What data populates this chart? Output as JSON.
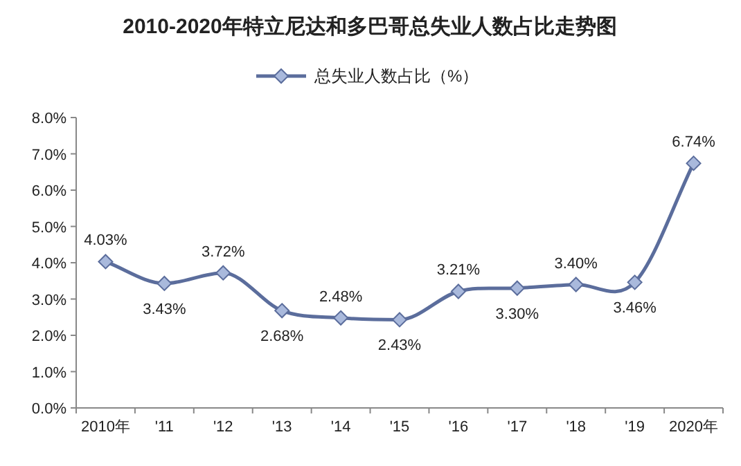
{
  "chart_data": {
    "type": "line",
    "title": "2010-2020年特立尼达和多巴哥总失业人数占比走势图",
    "categories": [
      "2010年",
      "'11",
      "'12",
      "'13",
      "'14",
      "'15",
      "'16",
      "'17",
      "'18",
      "'19",
      "2020年"
    ],
    "series": [
      {
        "name": "总失业人数占比（%）",
        "color": "#5b6d9c",
        "values": [
          4.03,
          3.43,
          3.72,
          2.68,
          2.48,
          2.43,
          3.21,
          3.3,
          3.4,
          3.46,
          6.74
        ],
        "value_labels": [
          "4.03%",
          "3.43%",
          "3.72%",
          "2.68%",
          "2.48%",
          "2.43%",
          "3.21%",
          "3.30%",
          "3.40%",
          "3.46%",
          "6.74%"
        ]
      }
    ],
    "ylim": [
      0,
      8
    ],
    "yticks": [
      {
        "value": 0,
        "label": "0.0%"
      },
      {
        "value": 1,
        "label": "1.0%"
      },
      {
        "value": 2,
        "label": "2.0%"
      },
      {
        "value": 3,
        "label": "3.0%"
      },
      {
        "value": 4,
        "label": "4.0%"
      },
      {
        "value": 5,
        "label": "5.0%"
      },
      {
        "value": 6,
        "label": "6.0%"
      },
      {
        "value": 7,
        "label": "7.0%"
      },
      {
        "value": 8,
        "label": "8.0%"
      }
    ],
    "legend": "top",
    "marker": "diamond",
    "line_style": "solid",
    "grid": false
  }
}
